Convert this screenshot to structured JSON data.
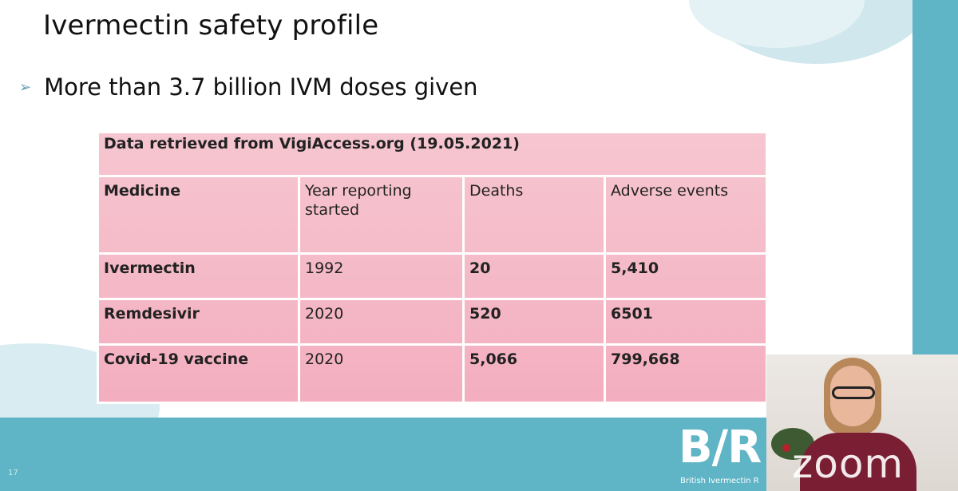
{
  "slide": {
    "title": "Ivermectin safety profile",
    "bullet_icon": "arrow-bullet-icon",
    "bullet_text": "More than 3.7 billion IVM doses given"
  },
  "table": {
    "caption": "Data retrieved from VigiAccess.org (19.05.2021)",
    "headers": [
      "Medicine",
      "Year reporting started",
      "Deaths",
      "Adverse events"
    ],
    "rows": [
      [
        "Ivermectin",
        "1992",
        "20",
        "5,410"
      ],
      [
        "Remdesivir",
        "2020",
        "520",
        "6501"
      ],
      [
        "Covid-19 vaccine",
        "2020",
        "5,066",
        "799,668"
      ]
    ]
  },
  "footer": {
    "page_number": "17",
    "logo_text": "B/R",
    "logo_subtext": "British Ivermectin R"
  },
  "video": {
    "watermark": "zoom"
  },
  "colors": {
    "teal_band": "#5fb4c6",
    "table_pink": "#f3aebf",
    "slide_bg": "#ffffff"
  }
}
